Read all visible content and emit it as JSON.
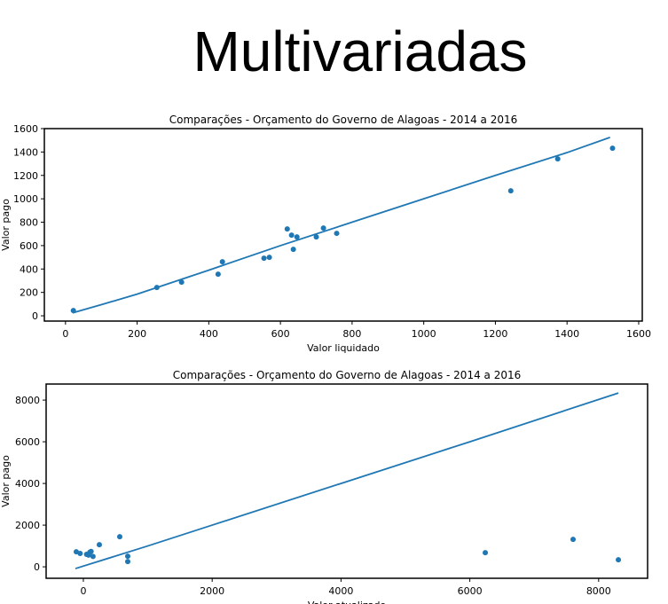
{
  "title": "Multivariadas",
  "chart_data": [
    {
      "type": "scatter",
      "title": "Comparações - Orçamento do Governo de Alagoas - 2014 a 2016",
      "x_label": "Valor liquidado",
      "y_label": "Valor pago",
      "color": "#1f77b4",
      "xlim": [
        -59,
        1610
      ],
      "ylim": [
        -45,
        1600
      ],
      "xticks": [
        0,
        200,
        400,
        600,
        800,
        1000,
        1200,
        1400,
        1600
      ],
      "yticks": [
        0,
        200,
        400,
        600,
        800,
        1000,
        1200,
        1400,
        1600
      ],
      "x": [
        22,
        255,
        324,
        426,
        438,
        554,
        569,
        619,
        631,
        636,
        646,
        700,
        720,
        757,
        1243,
        1374,
        1527
      ],
      "y": [
        45,
        242,
        288,
        356,
        462,
        492,
        500,
        742,
        689,
        568,
        674,
        674,
        750,
        705,
        1068,
        1341,
        1432
      ],
      "line_x": [
        20,
        100,
        200,
        400,
        600,
        800,
        1000,
        1200,
        1400,
        1520
      ],
      "line_y": [
        25,
        95,
        185,
        390,
        600,
        800,
        1000,
        1200,
        1395,
        1525
      ]
    },
    {
      "type": "scatter",
      "title": "Comparações - Orçamento do Governo de Alagoas - 2014 a 2016",
      "x_label": "Valor atualizado",
      "y_label": "Valor pago",
      "color": "#1f77b4",
      "xlim": [
        -578,
        8760
      ],
      "ylim": [
        -550,
        8770
      ],
      "xticks": [
        0,
        2000,
        4000,
        6000,
        8000
      ],
      "yticks": [
        0,
        2000,
        4000,
        6000,
        8000
      ],
      "x": [
        -110,
        -50,
        50,
        80,
        100,
        120,
        150,
        248,
        565,
        689,
        689,
        6240,
        7603,
        8306
      ],
      "y": [
        723,
        640,
        600,
        560,
        700,
        740,
        500,
        1064,
        1447,
        510,
        255,
        680,
        1319,
        340
      ],
      "line_x": [
        -124,
        1000,
        2000,
        4000,
        6000,
        8306
      ],
      "line_y": [
        -85,
        1000,
        2000,
        4000,
        6000,
        8340
      ]
    }
  ]
}
